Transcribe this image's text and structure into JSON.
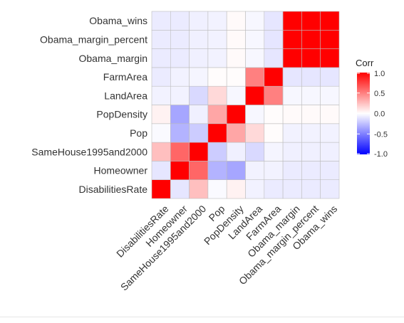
{
  "chart_data": {
    "type": "heatmap",
    "variables": [
      "DisabilitiesRate",
      "Homeowner",
      "SameHouse1995and2000",
      "Pop",
      "PopDensity",
      "LandArea",
      "FarmArea",
      "Obama_margin",
      "Obama_margin_percent",
      "Obama_wins"
    ],
    "y_order_top_to_bottom": [
      "Obama_wins",
      "Obama_margin_percent",
      "Obama_margin",
      "FarmArea",
      "LandArea",
      "PopDensity",
      "Pop",
      "SameHouse1995and2000",
      "Homeowner",
      "DisabilitiesRate"
    ],
    "matrix": [
      [
        1.0,
        -0.1,
        0.25,
        -0.02,
        0.05,
        -0.05,
        -0.08,
        -0.08,
        -0.08,
        -0.08
      ],
      [
        -0.1,
        1.0,
        0.6,
        -0.3,
        -0.35,
        -0.05,
        -0.05,
        -0.08,
        -0.08,
        -0.08
      ],
      [
        0.25,
        0.6,
        1.0,
        -0.2,
        -0.06,
        -0.15,
        -0.04,
        -0.06,
        -0.06,
        -0.06
      ],
      [
        -0.02,
        -0.3,
        -0.2,
        1.0,
        0.35,
        0.15,
        0.01,
        -0.05,
        -0.05,
        -0.05
      ],
      [
        0.05,
        -0.35,
        -0.06,
        0.35,
        1.0,
        -0.03,
        0.01,
        0.02,
        0.02,
        0.02
      ],
      [
        -0.05,
        -0.05,
        -0.15,
        0.15,
        -0.03,
        1.0,
        0.5,
        -0.03,
        -0.03,
        -0.03
      ],
      [
        -0.08,
        -0.05,
        -0.04,
        0.01,
        0.01,
        0.5,
        1.0,
        -0.1,
        -0.1,
        -0.1
      ],
      [
        -0.08,
        -0.08,
        -0.06,
        -0.05,
        0.02,
        -0.03,
        -0.1,
        1.0,
        1.0,
        1.0
      ],
      [
        -0.08,
        -0.08,
        -0.06,
        -0.05,
        0.02,
        -0.03,
        -0.1,
        1.0,
        1.0,
        1.0
      ],
      [
        -0.08,
        -0.08,
        -0.06,
        -0.05,
        0.02,
        -0.03,
        -0.1,
        1.0,
        1.0,
        1.0
      ]
    ],
    "scale": {
      "title": "Corr",
      "limits": [
        -1.0,
        1.0
      ],
      "ticks": [
        1.0,
        0.5,
        0.0,
        -0.5,
        -1.0
      ],
      "tick_labels": [
        "1.0",
        "0.5",
        "0.0",
        "-0.5",
        "-1.0"
      ],
      "low_color": "#0000ff",
      "mid_color": "#ffffff",
      "high_color": "#ff0000"
    },
    "grid_color": "#bdbdbd",
    "legend_position": "right"
  }
}
